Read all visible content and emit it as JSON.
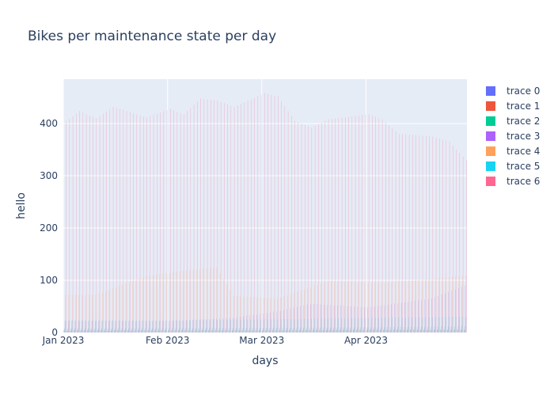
{
  "chart_data": {
    "type": "bar",
    "title": "Bikes per maintenance state per day",
    "xlabel": "days",
    "ylabel": "hello",
    "x_start": "2023-01-01",
    "x_end": "2023-04-30",
    "x_ticks": [
      {
        "date": "2023-01-01",
        "label": "Jan 2023"
      },
      {
        "date": "2023-02-01",
        "label": "Feb 2023"
      },
      {
        "date": "2023-03-01",
        "label": "Mar 2023"
      },
      {
        "date": "2023-04-01",
        "label": "Apr 2023"
      }
    ],
    "ylim": [
      0,
      485
    ],
    "yticks": [
      0,
      100,
      200,
      300,
      400
    ],
    "grid": true,
    "legend_position": "right",
    "series": [
      {
        "name": "trace 0",
        "color": "#636efa",
        "points": [
          [
            "2023-01-01",
            5
          ],
          [
            "2023-02-01",
            5
          ],
          [
            "2023-03-01",
            5
          ],
          [
            "2023-04-01",
            6
          ],
          [
            "2023-04-30",
            6
          ]
        ]
      },
      {
        "name": "trace 1",
        "color": "#ef553b",
        "points": [
          [
            "2023-01-01",
            3
          ],
          [
            "2023-02-01",
            3
          ],
          [
            "2023-03-01",
            3
          ],
          [
            "2023-04-01",
            4
          ],
          [
            "2023-04-30",
            4
          ]
        ]
      },
      {
        "name": "trace 2",
        "color": "#00cc96",
        "points": [
          [
            "2023-01-01",
            8
          ],
          [
            "2023-02-01",
            8
          ],
          [
            "2023-03-01",
            9
          ],
          [
            "2023-04-01",
            10
          ],
          [
            "2023-04-30",
            12
          ]
        ]
      },
      {
        "name": "trace 3",
        "color": "#ab63fa",
        "points": [
          [
            "2023-01-01",
            22
          ],
          [
            "2023-02-01",
            22
          ],
          [
            "2023-02-20",
            28
          ],
          [
            "2023-03-05",
            40
          ],
          [
            "2023-03-15",
            55
          ],
          [
            "2023-04-01",
            48
          ],
          [
            "2023-04-20",
            65
          ],
          [
            "2023-04-30",
            90
          ]
        ]
      },
      {
        "name": "trace 4",
        "color": "#ffa15a",
        "points": [
          [
            "2023-01-01",
            72
          ],
          [
            "2023-01-10",
            72
          ],
          [
            "2023-01-25",
            108
          ],
          [
            "2023-02-05",
            118
          ],
          [
            "2023-02-15",
            125
          ],
          [
            "2023-02-20",
            70
          ],
          [
            "2023-03-05",
            65
          ],
          [
            "2023-03-20",
            98
          ],
          [
            "2023-04-05",
            95
          ],
          [
            "2023-04-20",
            102
          ],
          [
            "2023-04-30",
            110
          ]
        ]
      },
      {
        "name": "trace 5",
        "color": "#19d3f3",
        "points": [
          [
            "2023-01-01",
            24
          ],
          [
            "2023-02-01",
            23
          ],
          [
            "2023-03-01",
            25
          ],
          [
            "2023-04-01",
            28
          ],
          [
            "2023-04-30",
            30
          ]
        ]
      },
      {
        "name": "trace 6",
        "color": "#ff6692",
        "points": [
          [
            "2023-01-01",
            404
          ],
          [
            "2023-01-05",
            424
          ],
          [
            "2023-01-10",
            410
          ],
          [
            "2023-01-15",
            432
          ],
          [
            "2023-01-20",
            422
          ],
          [
            "2023-01-25",
            412
          ],
          [
            "2023-02-01",
            428
          ],
          [
            "2023-02-05",
            418
          ],
          [
            "2023-02-10",
            448
          ],
          [
            "2023-02-15",
            444
          ],
          [
            "2023-02-20",
            432
          ],
          [
            "2023-03-01",
            458
          ],
          [
            "2023-03-05",
            452
          ],
          [
            "2023-03-10",
            405
          ],
          [
            "2023-03-15",
            392
          ],
          [
            "2023-03-20",
            408
          ],
          [
            "2023-03-25",
            412
          ],
          [
            "2023-04-01",
            418
          ],
          [
            "2023-04-05",
            408
          ],
          [
            "2023-04-10",
            380
          ],
          [
            "2023-04-15",
            378
          ],
          [
            "2023-04-20",
            375
          ],
          [
            "2023-04-25",
            365
          ],
          [
            "2023-04-30",
            330
          ]
        ]
      }
    ]
  }
}
